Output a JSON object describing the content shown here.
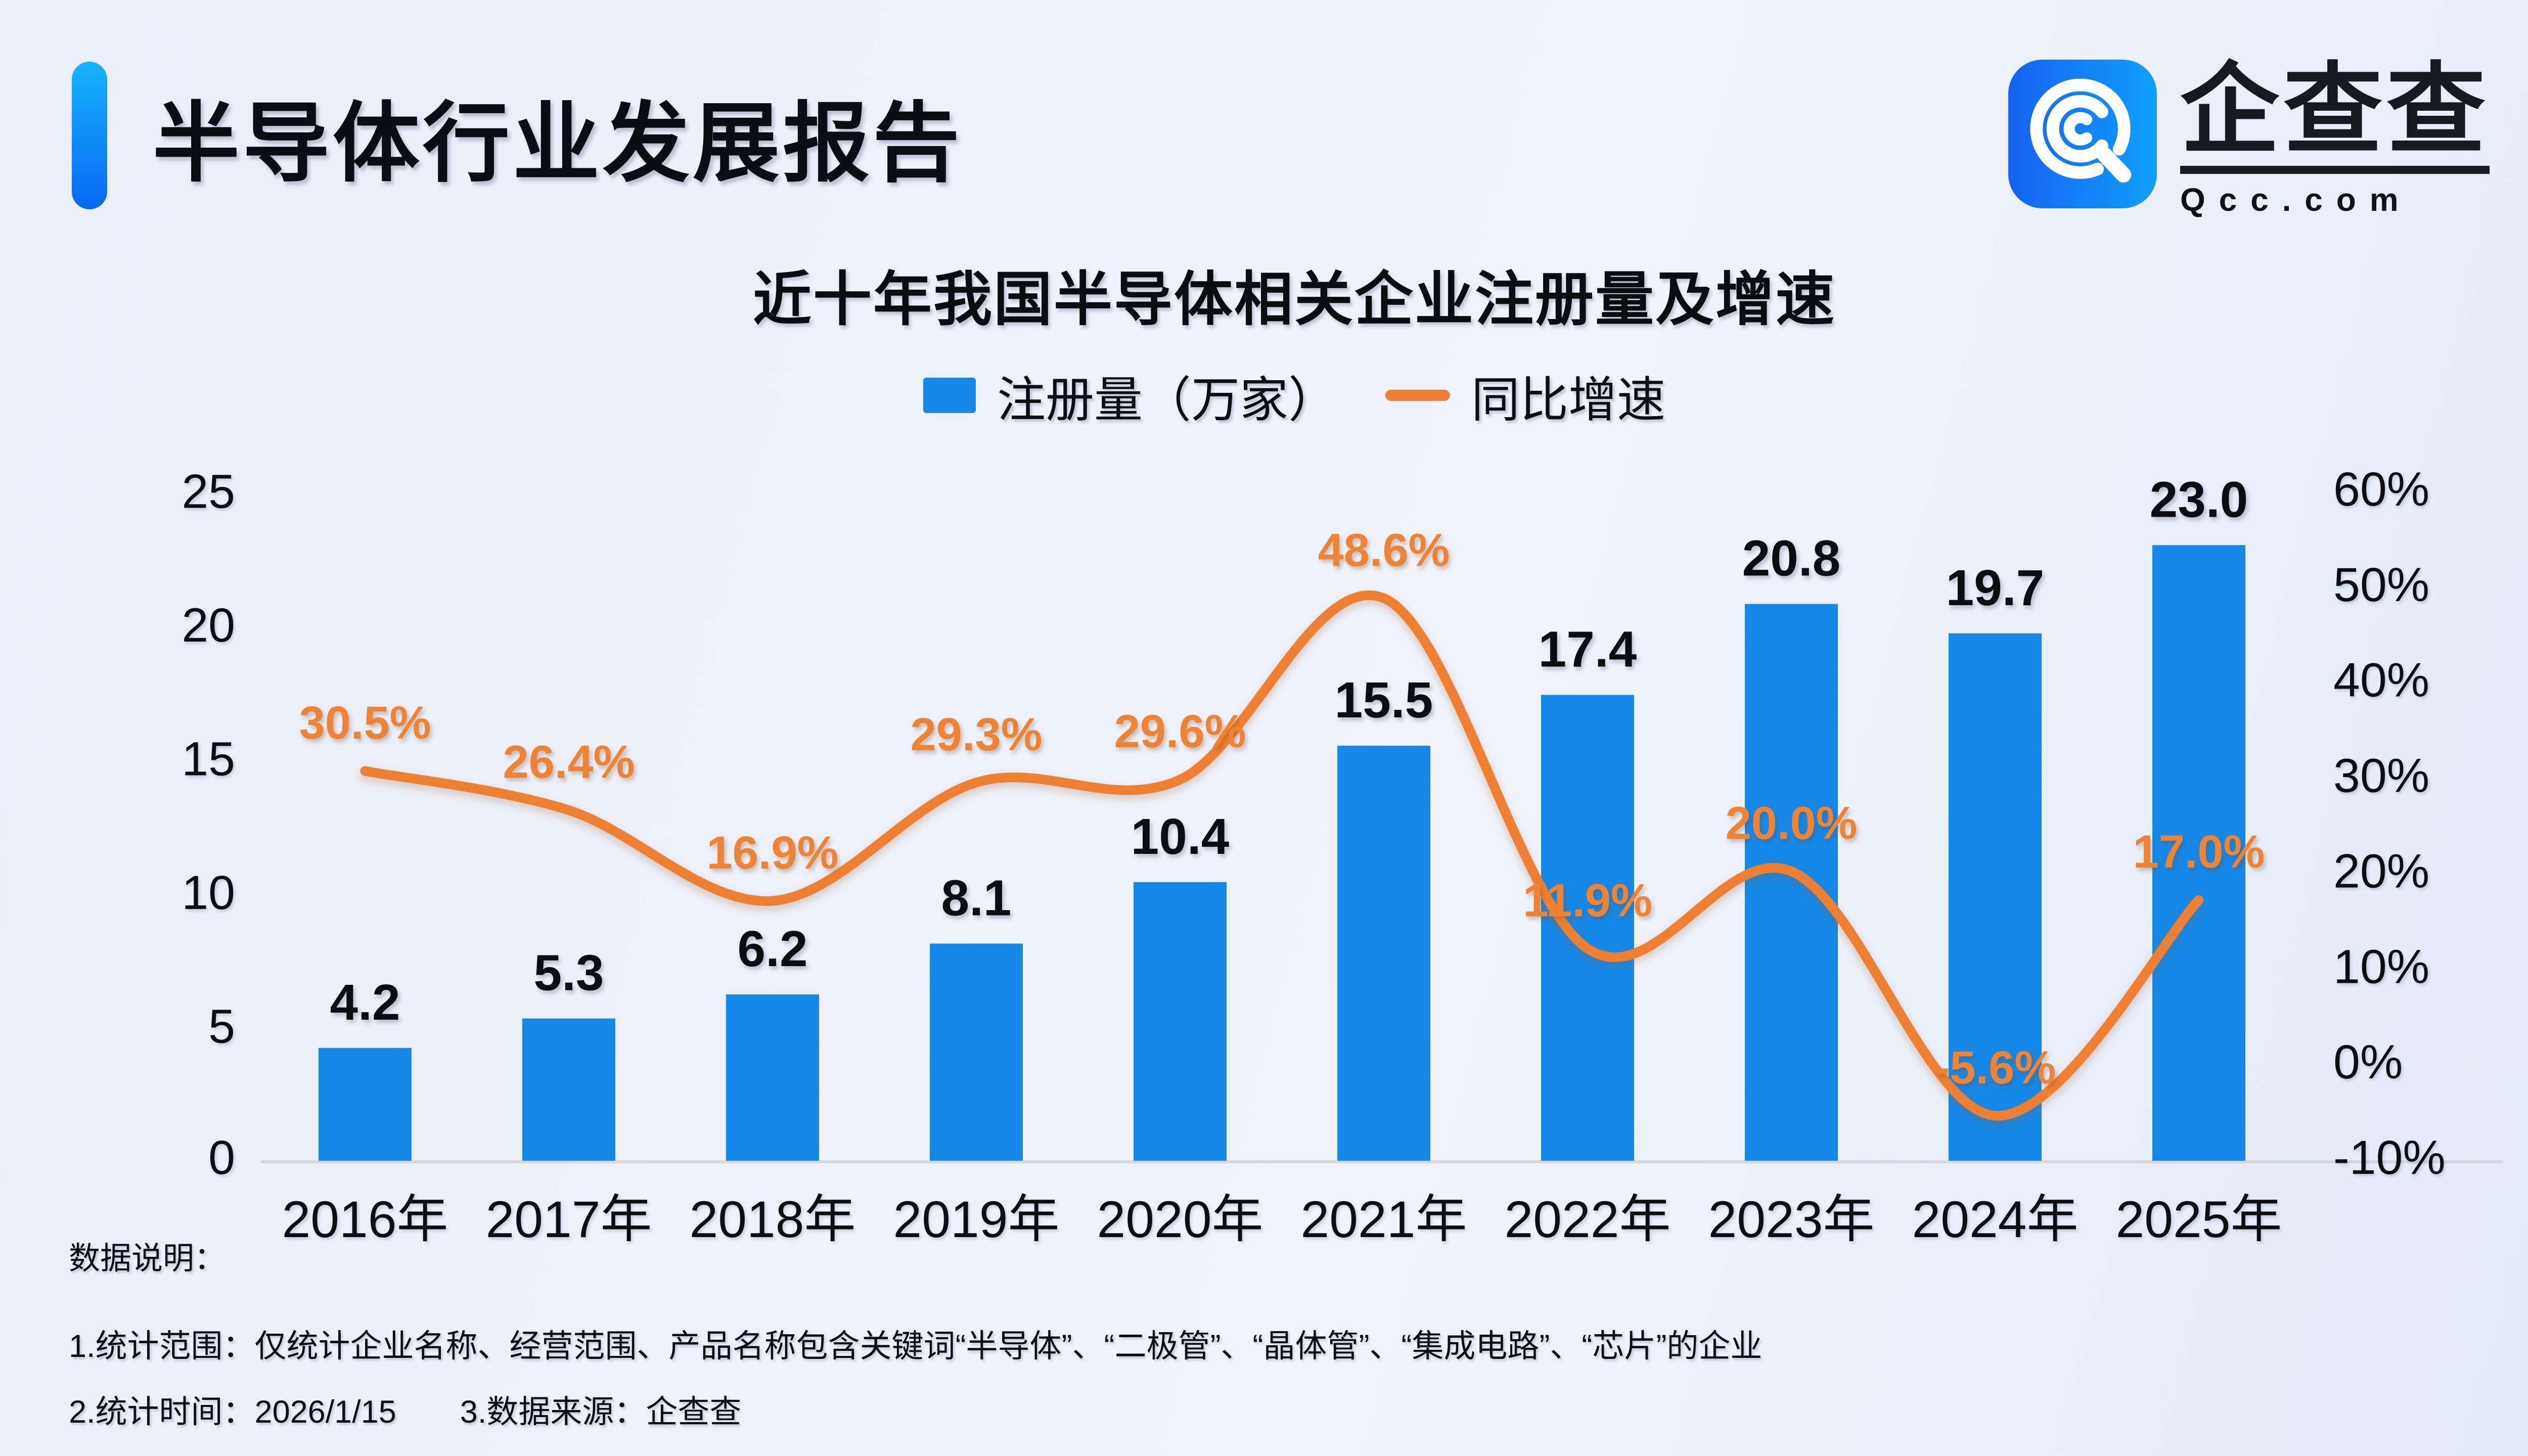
{
  "header": {
    "title": "半导体行业发展报告"
  },
  "logo": {
    "name": "企查查",
    "domain": "Qcc.com",
    "icon": "qcc-spiral-q-icon"
  },
  "chart": {
    "title": "近十年我国半导体相关企业注册量及增速"
  },
  "legend": {
    "bar_label": "注册量（万家）",
    "line_label": "同比增速"
  },
  "footnotes": {
    "heading": "数据说明：",
    "line1": "1.统计范围：仅统计企业名称、经营范围、产品名称包含关键词“半导体”、“二极管”、“晶体管”、“集成电路”、“芯片”的企业",
    "line2": "2.统计时间：2026/1/15　　3.数据来源：企查查"
  },
  "colors": {
    "bar": "#1689E8",
    "line": "#ED8032",
    "line_label": "#ED8335",
    "axis_line": "#D5D7DB",
    "accent_top": "#16B4FD",
    "accent_bottom": "#0768F3",
    "logo_left": "#1562F1",
    "logo_right": "#0FA0FA",
    "text": "#0C0E12",
    "background": "#ECF1FA"
  },
  "chart_data": {
    "type": "combo-bar-line",
    "title": "近十年我国半导体相关企业注册量及增速",
    "categories": [
      "2016年",
      "2017年",
      "2018年",
      "2019年",
      "2020年",
      "2021年",
      "2022年",
      "2023年",
      "2024年",
      "2025年"
    ],
    "series": [
      {
        "name": "注册量（万家）",
        "type": "bar",
        "axis": "left",
        "color": "#1689E8",
        "values": [
          4.2,
          5.3,
          6.2,
          8.1,
          10.4,
          15.5,
          17.4,
          20.8,
          19.7,
          23.0
        ],
        "labels": [
          "4.2",
          "5.3",
          "6.2",
          "8.1",
          "10.4",
          "15.5",
          "17.4",
          "20.8",
          "19.7",
          "23.0"
        ]
      },
      {
        "name": "同比增速",
        "type": "line",
        "axis": "right",
        "unit": "%",
        "color": "#ED8032",
        "values": [
          30.5,
          26.4,
          16.9,
          29.3,
          29.6,
          48.6,
          11.9,
          20.0,
          -5.6,
          17.0
        ],
        "labels": [
          "30.5%",
          "26.4%",
          "16.9%",
          "29.3%",
          "29.6%",
          "48.6%",
          "11.9%",
          "20.0%",
          "-5.6%",
          "17.0%"
        ]
      }
    ],
    "left_axis": {
      "range": [
        0,
        25
      ],
      "tick_values": [
        25,
        20,
        15,
        10,
        5,
        0
      ],
      "tick_labels": [
        "25",
        "20",
        "15",
        "10",
        "5",
        "0"
      ]
    },
    "right_axis": {
      "range": [
        -10,
        60
      ],
      "tick_values": [
        60,
        50,
        40,
        30,
        20,
        10,
        0,
        -10
      ],
      "tick_labels": [
        "60%",
        "50%",
        "40%",
        "30%",
        "20%",
        "10%",
        "0%",
        "-10%"
      ]
    },
    "grid": false,
    "legend_position": "top"
  }
}
